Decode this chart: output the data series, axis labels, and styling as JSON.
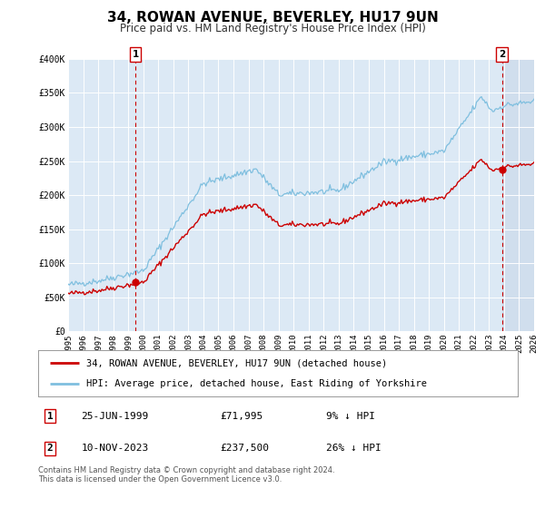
{
  "title": "34, ROWAN AVENUE, BEVERLEY, HU17 9UN",
  "subtitle": "Price paid vs. HM Land Registry's House Price Index (HPI)",
  "title_fontsize": 11,
  "subtitle_fontsize": 8.5,
  "background_color": "#ffffff",
  "plot_bg_color": "#dce9f5",
  "grid_color": "#ffffff",
  "sale1_date": 1999.48,
  "sale1_price": 71995,
  "sale1_label": "1",
  "sale2_date": 2023.86,
  "sale2_price": 237500,
  "sale2_label": "2",
  "hpi_color": "#7fbfdf",
  "sale_color": "#cc0000",
  "dashed_color": "#cc0000",
  "ylim": [
    0,
    400000
  ],
  "xlim_start": 1995,
  "xlim_end": 2026,
  "legend_sale_label": "34, ROWAN AVENUE, BEVERLEY, HU17 9UN (detached house)",
  "legend_hpi_label": "HPI: Average price, detached house, East Riding of Yorkshire",
  "table_rows": [
    {
      "num": "1",
      "date": "25-JUN-1999",
      "price": "£71,995",
      "pct": "9% ↓ HPI"
    },
    {
      "num": "2",
      "date": "10-NOV-2023",
      "price": "£237,500",
      "pct": "26% ↓ HPI"
    }
  ],
  "footnote": "Contains HM Land Registry data © Crown copyright and database right 2024.\nThis data is licensed under the Open Government Licence v3.0.",
  "yticks": [
    0,
    50000,
    100000,
    150000,
    200000,
    250000,
    300000,
    350000,
    400000
  ],
  "ytick_labels": [
    "£0",
    "£50K",
    "£100K",
    "£150K",
    "£200K",
    "£250K",
    "£300K",
    "£350K",
    "£400K"
  ],
  "xticks": [
    1995,
    1996,
    1997,
    1998,
    1999,
    2000,
    2001,
    2002,
    2003,
    2004,
    2005,
    2006,
    2007,
    2008,
    2009,
    2010,
    2011,
    2012,
    2013,
    2014,
    2015,
    2016,
    2017,
    2018,
    2019,
    2020,
    2021,
    2022,
    2023,
    2024,
    2025,
    2026
  ],
  "shaded_color": "#c8d8e8"
}
